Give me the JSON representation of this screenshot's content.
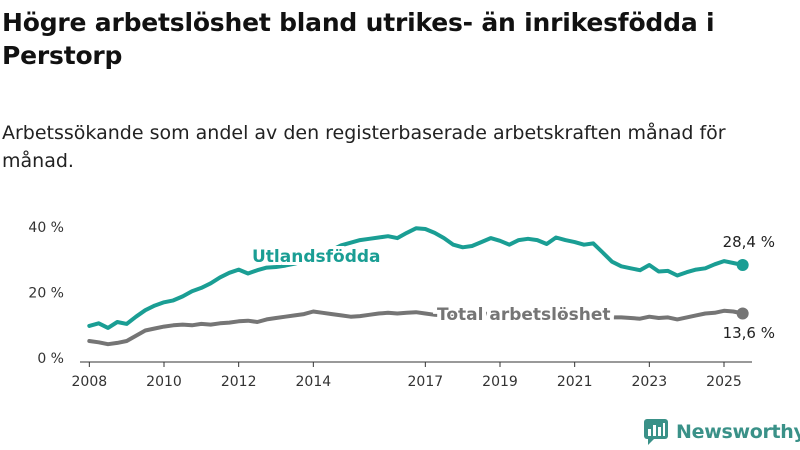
{
  "title": "Högre arbetslöshet bland utrikes- än inrikesfödda i Perstorp",
  "subtitle": "Arbetssökande som andel av den registerbaserade arbetskraften månad för månad.",
  "brand": "Newsworthy",
  "colors": {
    "foreign": "#1a9e94",
    "total": "#757575",
    "brand": "#3a9188"
  },
  "chart_data": {
    "type": "line",
    "title": "Högre arbetslöshet bland utrikes- än inrikesfödda i Perstorp",
    "subtitle": "Arbetssökande som andel av den registerbaserade arbetskraften månad för månad.",
    "xlabel": "",
    "ylabel": "",
    "ylim": [
      0,
      40
    ],
    "xlim": [
      2007.75,
      2025.75
    ],
    "y_ticks": [
      0,
      20,
      40
    ],
    "y_tick_labels": [
      "0 %",
      "20 %",
      "40 %"
    ],
    "x_ticks": [
      2008,
      2010,
      2012,
      2014,
      2017,
      2019,
      2021,
      2023,
      2025
    ],
    "x_tick_labels": [
      "2008",
      "2010",
      "2012",
      "2014",
      "2017",
      "2019",
      "2021",
      "2023",
      "2025"
    ],
    "grid": false,
    "series": [
      {
        "name": "Utlandsfödda",
        "color": "#1a9e94",
        "end_label": "28,4 %",
        "x": [
          2008.0,
          2008.25,
          2008.5,
          2008.75,
          2009.0,
          2009.25,
          2009.5,
          2009.75,
          2010.0,
          2010.25,
          2010.5,
          2010.75,
          2011.0,
          2011.25,
          2011.5,
          2011.75,
          2012.0,
          2012.25,
          2012.5,
          2012.75,
          2013.0,
          2013.25,
          2013.5,
          2013.75,
          2014.0,
          2014.25,
          2014.5,
          2014.75,
          2015.0,
          2015.25,
          2015.5,
          2015.75,
          2016.0,
          2016.25,
          2016.5,
          2016.75,
          2017.0,
          2017.25,
          2017.5,
          2017.75,
          2018.0,
          2018.25,
          2018.5,
          2018.75,
          2019.0,
          2019.25,
          2019.5,
          2019.75,
          2020.0,
          2020.25,
          2020.5,
          2020.75,
          2021.0,
          2021.25,
          2021.5,
          2021.75,
          2022.0,
          2022.25,
          2022.5,
          2022.75,
          2023.0,
          2023.25,
          2023.5,
          2023.75,
          2024.0,
          2024.25,
          2024.5,
          2024.75,
          2025.0,
          2025.25,
          2025.5
        ],
        "values": [
          9.8,
          10.6,
          9.2,
          11.0,
          10.4,
          12.6,
          14.6,
          16.0,
          17.0,
          17.6,
          18.8,
          20.4,
          21.4,
          22.8,
          24.6,
          26.0,
          27.0,
          25.8,
          26.8,
          27.6,
          27.8,
          28.2,
          28.8,
          29.6,
          30.4,
          31.6,
          33.0,
          34.4,
          35.2,
          36.0,
          36.4,
          36.8,
          37.2,
          36.6,
          38.2,
          39.6,
          39.4,
          38.2,
          36.6,
          34.6,
          33.8,
          34.2,
          35.4,
          36.6,
          35.8,
          34.6,
          36.0,
          36.4,
          36.0,
          34.8,
          36.8,
          36.0,
          35.4,
          34.6,
          35.0,
          32.2,
          29.4,
          28.0,
          27.4,
          26.8,
          28.4,
          26.4,
          26.6,
          25.2,
          26.2,
          27.0,
          27.4,
          28.6,
          29.6,
          29.0,
          28.4
        ]
      },
      {
        "name": "Total arbetslöshet",
        "color": "#757575",
        "end_label": "13,6 %",
        "x": [
          2008.0,
          2008.25,
          2008.5,
          2008.75,
          2009.0,
          2009.25,
          2009.5,
          2009.75,
          2010.0,
          2010.25,
          2010.5,
          2010.75,
          2011.0,
          2011.25,
          2011.5,
          2011.75,
          2012.0,
          2012.25,
          2012.5,
          2012.75,
          2013.0,
          2013.25,
          2013.5,
          2013.75,
          2014.0,
          2014.25,
          2014.5,
          2014.75,
          2015.0,
          2015.25,
          2015.5,
          2015.75,
          2016.0,
          2016.25,
          2016.5,
          2016.75,
          2017.0,
          2017.25,
          2017.5,
          2017.75,
          2018.0,
          2018.25,
          2018.5,
          2018.75,
          2019.0,
          2019.25,
          2019.5,
          2019.75,
          2020.0,
          2020.25,
          2020.5,
          2020.75,
          2021.0,
          2021.25,
          2021.5,
          2021.75,
          2022.0,
          2022.25,
          2022.5,
          2022.75,
          2023.0,
          2023.25,
          2023.5,
          2023.75,
          2024.0,
          2024.25,
          2024.5,
          2024.75,
          2025.0,
          2025.25,
          2025.5
        ],
        "values": [
          5.2,
          4.8,
          4.2,
          4.6,
          5.2,
          6.8,
          8.4,
          9.0,
          9.6,
          10.0,
          10.2,
          10.0,
          10.4,
          10.2,
          10.6,
          10.8,
          11.2,
          11.4,
          11.0,
          11.8,
          12.2,
          12.6,
          13.0,
          13.4,
          14.2,
          13.8,
          13.4,
          13.0,
          12.6,
          12.8,
          13.2,
          13.6,
          13.8,
          13.6,
          13.8,
          14.0,
          13.6,
          13.2,
          13.0,
          13.2,
          13.4,
          13.2,
          13.4,
          13.6,
          13.6,
          13.4,
          13.8,
          13.6,
          13.8,
          13.4,
          13.6,
          13.4,
          13.2,
          13.0,
          13.2,
          12.6,
          12.4,
          12.4,
          12.2,
          12.0,
          12.6,
          12.2,
          12.4,
          11.8,
          12.4,
          13.0,
          13.6,
          13.8,
          14.4,
          14.2,
          13.6
        ]
      }
    ]
  }
}
